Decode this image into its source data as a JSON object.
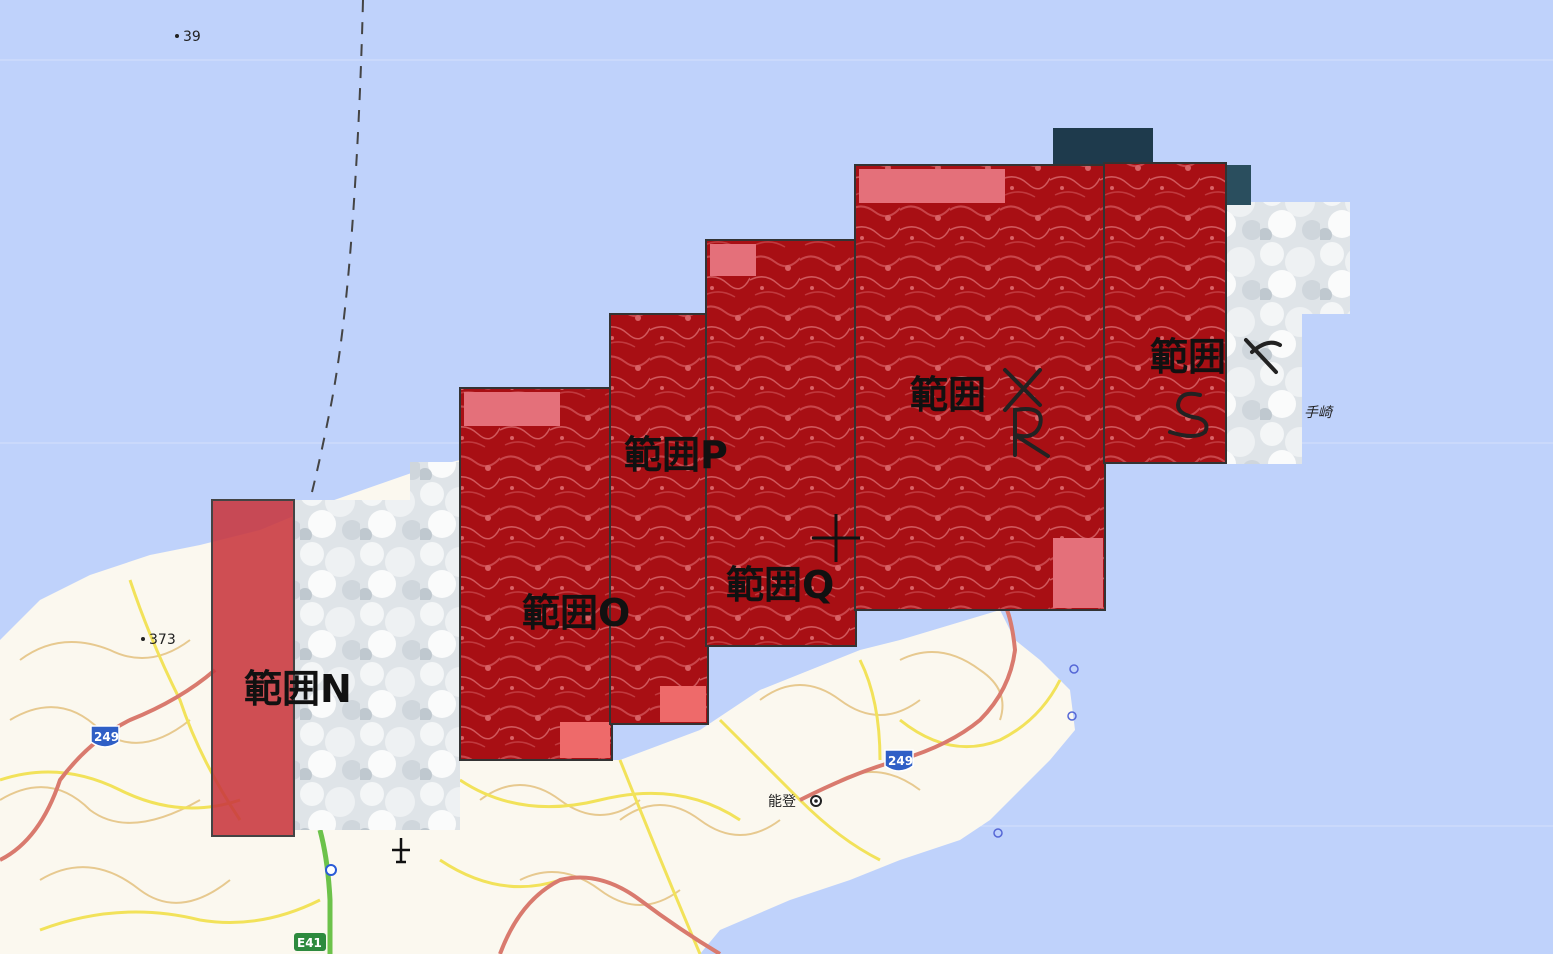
{
  "map": {
    "ranges": [
      {
        "id": "N",
        "label": "範囲N"
      },
      {
        "id": "O",
        "label": "範囲O"
      },
      {
        "id": "P",
        "label": "範囲P"
      },
      {
        "id": "Q",
        "label": "範囲Q"
      },
      {
        "id": "R",
        "label": "範囲"
      },
      {
        "id": "S",
        "label": "範囲"
      }
    ],
    "handwritten": {
      "r": "R",
      "s": "S"
    },
    "places": {
      "noto": "能登",
      "cape": "手崎"
    },
    "elevations": {
      "sea_39": "39",
      "peak_373": "373"
    },
    "routes": {
      "r249_west": "249",
      "r249_east": "249",
      "e41": "E41"
    },
    "colors": {
      "sea": "#bfd2fb",
      "land": "#fbf8ef",
      "overlay": "#b3000a",
      "coast_road": "#d97a6e",
      "road": "#f2e25a",
      "contour": "#e7c98f",
      "expressway": "#6cc24a"
    }
  }
}
